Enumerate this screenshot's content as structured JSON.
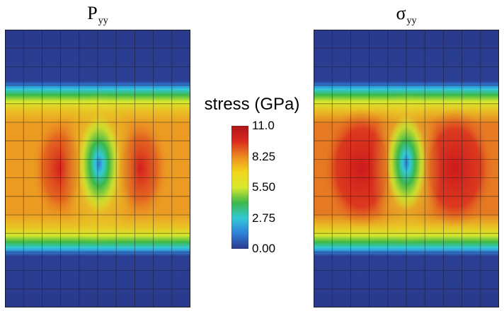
{
  "chart_data": [
    {
      "type": "heatmap",
      "title": "P",
      "title_subscript": "yy",
      "colorbar": "shared",
      "grid": true,
      "field": "stress",
      "units": "GPa"
    },
    {
      "type": "heatmap",
      "title": "σ",
      "title_subscript": "yy",
      "colorbar": "shared",
      "grid": true,
      "field": "stress",
      "units": "GPa"
    }
  ],
  "colorbar": {
    "label": "stress (GPa)",
    "range": [
      0.0,
      11.0
    ],
    "ticks": [
      "11.0",
      "8.25",
      "5.50",
      "2.75",
      "0.00"
    ],
    "colormap": [
      "#2a3a8c",
      "#2f7fd8",
      "#33c9d6",
      "#3cb84a",
      "#d9e92c",
      "#f2d61c",
      "#ec8a20",
      "#d92a1e",
      "#b0141a"
    ]
  }
}
